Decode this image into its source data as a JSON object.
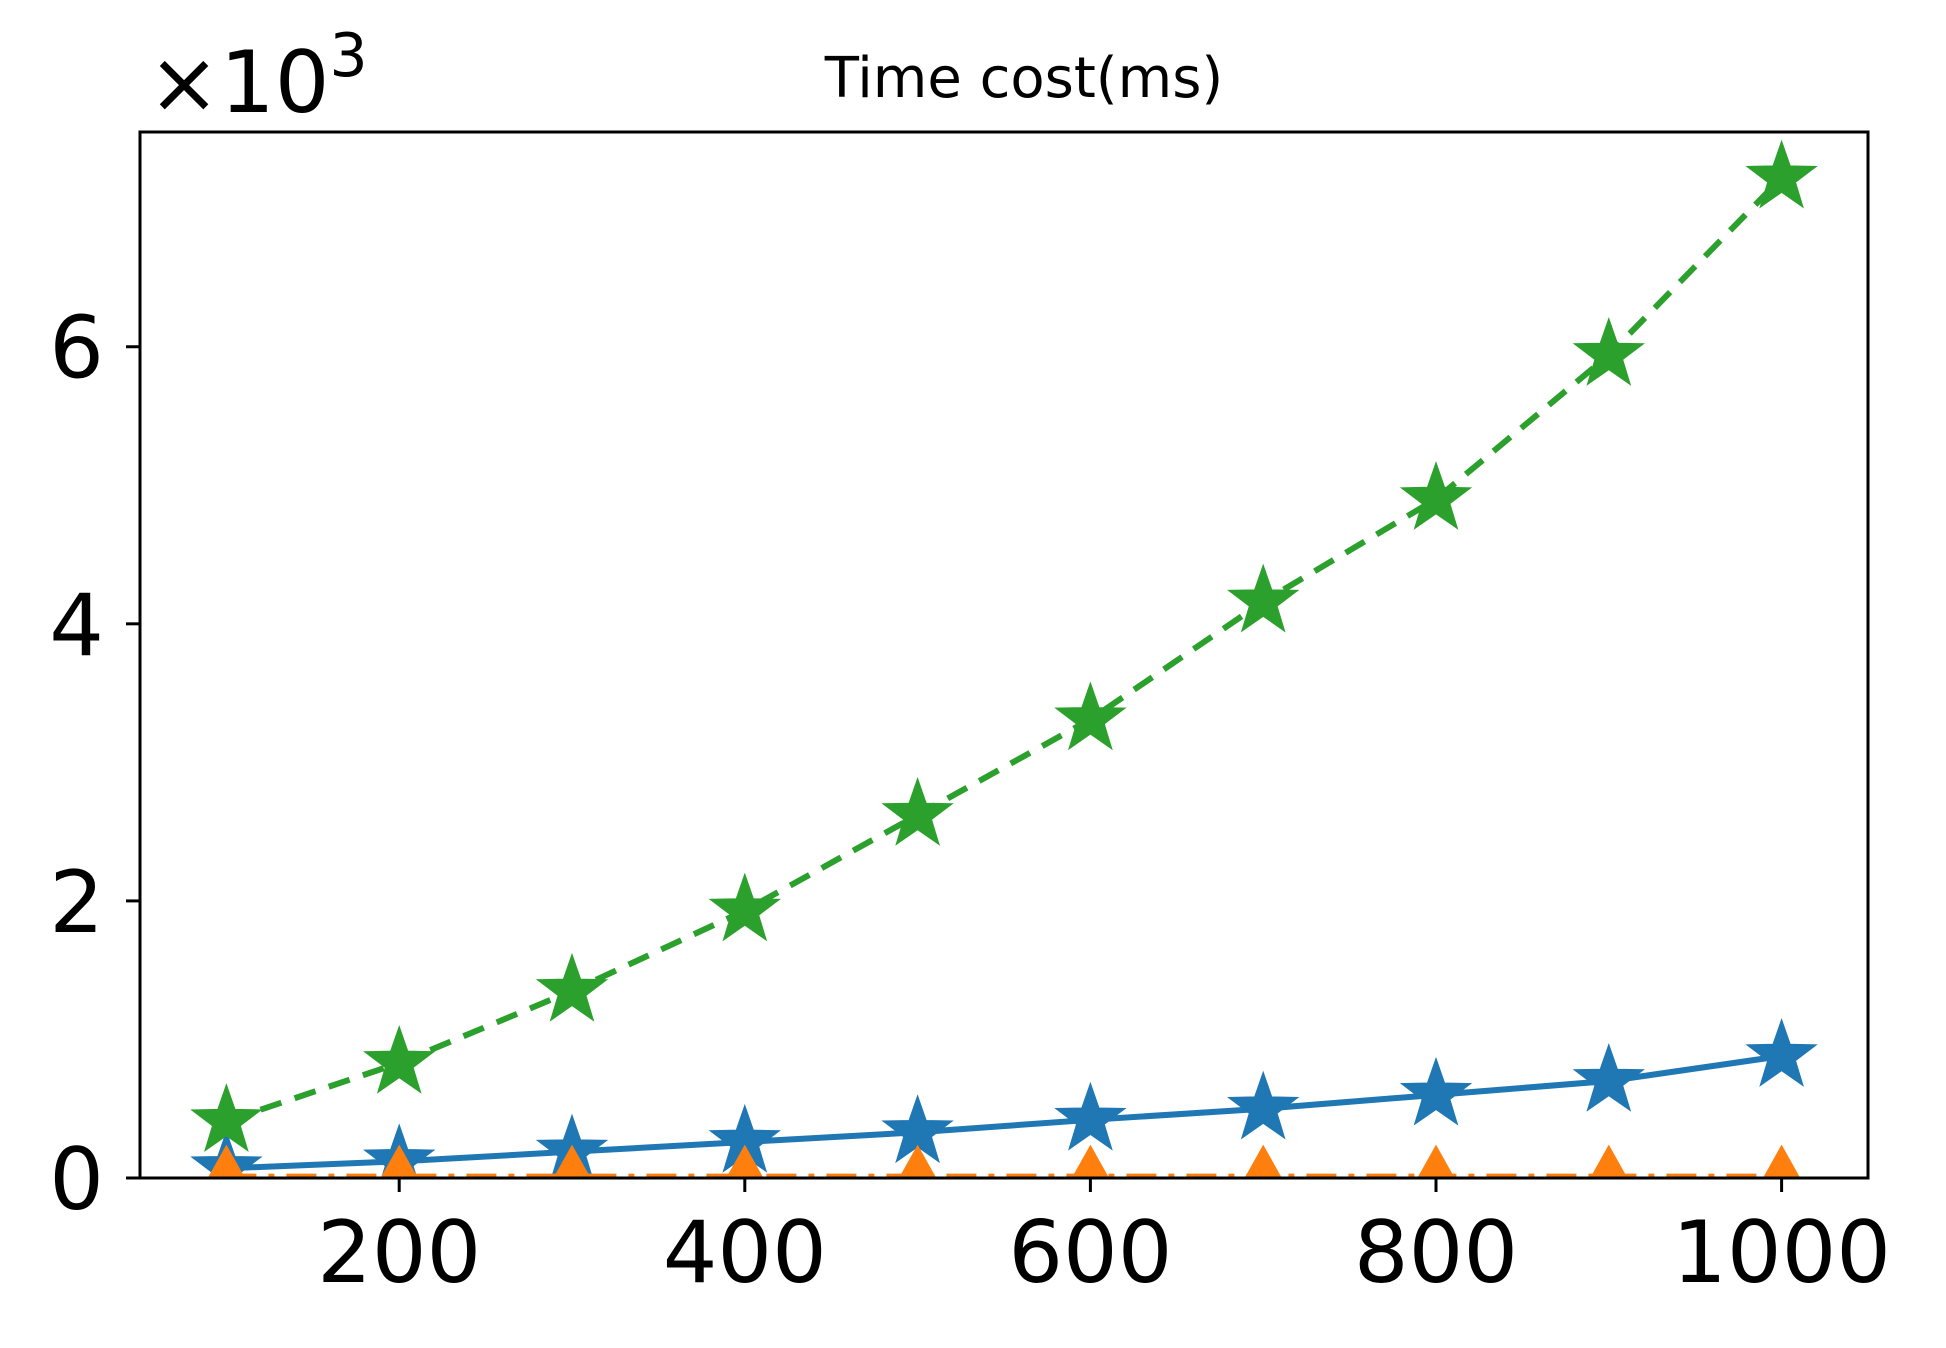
{
  "chart_data": {
    "type": "line",
    "title": "Time cost(ms)",
    "xlabel": "",
    "ylabel": "",
    "y_multiplier_label": {
      "base": "×10",
      "exponent": "3"
    },
    "x": [
      100,
      200,
      300,
      400,
      500,
      600,
      700,
      800,
      900,
      1000
    ],
    "xlim": [
      50,
      1050
    ],
    "ylim": [
      0,
      7.55
    ],
    "x_ticks": [
      200,
      400,
      600,
      800,
      1000
    ],
    "y_ticks": [
      0,
      2,
      4,
      6
    ],
    "x_tick_labels": [
      "200",
      "400",
      "600",
      "800",
      "1000"
    ],
    "y_tick_labels": [
      "0",
      "2",
      "4",
      "6"
    ],
    "grid": false,
    "series": [
      {
        "values": [
          0.07,
          0.12,
          0.19,
          0.26,
          0.33,
          0.42,
          0.5,
          0.6,
          0.7,
          0.88
        ],
        "color": "#1f77b4",
        "line_style": "solid",
        "marker": "star"
      },
      {
        "values": [
          0.01,
          0.01,
          0.01,
          0.01,
          0.01,
          0.01,
          0.01,
          0.01,
          0.01,
          0.01
        ],
        "color": "#ff7f0e",
        "line_style": "dashdot",
        "marker": "triangle-up"
      },
      {
        "values": [
          0.41,
          0.83,
          1.35,
          1.93,
          2.62,
          3.31,
          4.16,
          4.9,
          5.94,
          7.22
        ],
        "color": "#2ca02c",
        "line_style": "dashed",
        "marker": "star"
      }
    ]
  }
}
